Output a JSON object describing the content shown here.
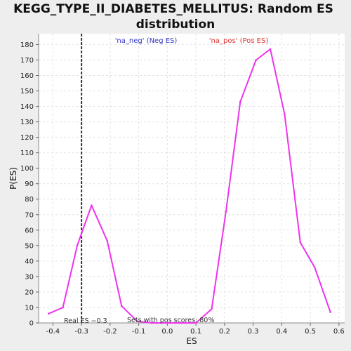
{
  "chart_data": {
    "type": "line",
    "title_line1": "KEGG_TYPE_II_DIABETES_MELLITUS: Random ES",
    "title_line2": "distribution",
    "xlabel": "ES",
    "ylabel": "P(ES)",
    "xlim": [
      -0.45,
      0.62
    ],
    "ylim": [
      0,
      187
    ],
    "x_ticks": [
      -0.4,
      -0.3,
      -0.2,
      -0.1,
      0.0,
      0.1,
      0.2,
      0.3,
      0.4,
      0.5,
      0.6
    ],
    "x_tick_labels": [
      "-0.4",
      "-0.3",
      "-0.2",
      "-0.1",
      "0.0",
      "0.1",
      "0.2",
      "0.3",
      "0.4",
      "0.5",
      "0.6"
    ],
    "y_ticks": [
      0,
      10,
      20,
      30,
      40,
      50,
      60,
      70,
      80,
      90,
      100,
      110,
      120,
      130,
      140,
      150,
      160,
      170,
      180
    ],
    "y_tick_labels": [
      "0",
      "10",
      "20",
      "30",
      "40",
      "50",
      "60",
      "70",
      "80",
      "90",
      "100",
      "110",
      "120",
      "130",
      "140",
      "150",
      "160",
      "170",
      "180"
    ],
    "grid": true,
    "legend": [
      {
        "label": "'na_neg' (Neg ES)",
        "color": "#3333cc"
      },
      {
        "label": "'na_pos' (Pos ES)",
        "color": "#dd3333"
      }
    ],
    "series": [
      {
        "color": "#ee33ee",
        "x": [
          -0.415,
          -0.365,
          -0.315,
          -0.265,
          -0.21,
          -0.16,
          -0.105,
          -0.055,
          0.0,
          0.05,
          0.1,
          0.155,
          0.205,
          0.255,
          0.31,
          0.36,
          0.41,
          0.465,
          0.515,
          0.57
        ],
        "y": [
          6,
          10,
          50,
          76,
          53,
          11,
          1,
          0,
          0,
          0,
          0,
          9,
          72,
          143,
          170,
          177,
          135,
          52,
          36,
          7
        ]
      }
    ],
    "real_es": {
      "x": -0.3,
      "label": "Real ES −0.3"
    },
    "annotation": "Sets with pos scores: 80%"
  }
}
